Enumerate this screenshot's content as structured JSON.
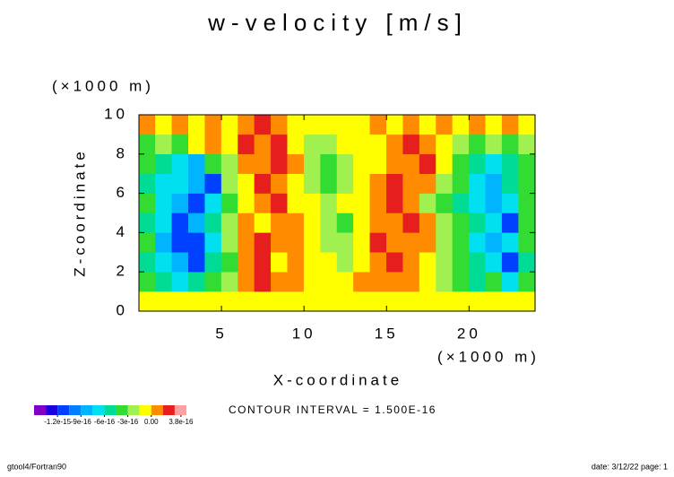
{
  "chart_data": {
    "type": "contour",
    "title": "w-velocity [m/s]",
    "x_label": "X-coordinate",
    "y_label": "Z-coordinate",
    "x_units": "(×1000 m)",
    "y_units": "(×1000 m)",
    "xlim": [
      0,
      24
    ],
    "ylim": [
      0,
      10
    ],
    "xticks": [
      5,
      10,
      15,
      20
    ],
    "yticks": [
      0,
      2,
      4,
      6,
      8,
      10
    ],
    "x": [
      0.5,
      1.5,
      2.5,
      3.5,
      4.5,
      5.5,
      6.5,
      7.5,
      8.5,
      9.5,
      10.5,
      11.5,
      12.5,
      13.5,
      14.5,
      15.5,
      16.5,
      17.5,
      18.5,
      19.5,
      20.5,
      21.5,
      22.5,
      23.5
    ],
    "y": [
      0.5,
      1.5,
      2.5,
      3.5,
      4.5,
      5.5,
      6.5,
      7.5,
      8.5,
      9.5
    ],
    "values": [
      [
        -5e-17,
        -5e-17,
        -5e-17,
        -5e-17,
        -5e-17,
        -5e-17,
        -5e-17,
        -5e-17,
        -5e-17,
        -5e-17,
        -5e-17,
        -5e-17,
        -5e-17,
        -5e-17,
        -5e-17,
        -5e-17,
        -5e-17,
        -5e-17,
        -5e-17,
        -5e-17,
        -5e-17,
        -5e-17,
        -5e-17,
        -5e-17
      ],
      [
        -3.5e-16,
        -5e-16,
        -6.5e-16,
        -5e-16,
        -3.5e-16,
        -2e-16,
        1e-16,
        2.5e-16,
        1e-16,
        1e-16,
        -5e-17,
        -5e-17,
        -5e-17,
        1e-16,
        1e-16,
        1e-16,
        1e-16,
        -5e-17,
        -2e-16,
        -3.5e-16,
        -5e-16,
        -3.5e-16,
        -6.5e-16,
        -3.5e-16
      ],
      [
        -5e-16,
        -6.5e-16,
        -8e-16,
        -1.1e-15,
        -5e-16,
        -3.5e-16,
        1e-16,
        2.5e-16,
        -5e-17,
        1e-16,
        -5e-17,
        -5e-17,
        -2e-16,
        -5e-17,
        1e-16,
        2.5e-16,
        1e-16,
        -5e-17,
        -2e-16,
        -3.5e-16,
        -5e-16,
        -6.5e-16,
        -1.1e-15,
        -5e-16
      ],
      [
        -3.5e-16,
        -8e-16,
        -1.1e-15,
        -1.1e-15,
        -6.5e-16,
        -2e-16,
        1e-16,
        2.5e-16,
        1e-16,
        1e-16,
        -5e-17,
        -2e-16,
        -2e-16,
        -5e-17,
        2.5e-16,
        1e-16,
        1e-16,
        1e-16,
        -2e-16,
        -3.5e-16,
        -6.5e-16,
        -8e-16,
        -6.5e-16,
        -3.5e-16
      ],
      [
        -5e-16,
        -6.5e-16,
        -1.1e-15,
        -8e-16,
        -5e-16,
        -2e-16,
        1e-16,
        -5e-17,
        1e-16,
        1e-16,
        -5e-17,
        -2e-16,
        -3.5e-16,
        -5e-17,
        1e-16,
        1e-16,
        2.5e-16,
        1e-16,
        -2e-16,
        -3.5e-16,
        -5e-16,
        -6.5e-16,
        -1.1e-15,
        -3.5e-16
      ],
      [
        -3.5e-16,
        -6.5e-16,
        -8e-16,
        -1.1e-15,
        -6.5e-16,
        -3.5e-16,
        -5e-17,
        1e-16,
        2.5e-16,
        -5e-17,
        -5e-17,
        -2e-16,
        -5e-17,
        -5e-17,
        1e-16,
        2.5e-16,
        1e-16,
        -2e-16,
        -3.5e-16,
        -5e-16,
        -6.5e-16,
        -8e-16,
        -6.5e-16,
        -3.5e-16
      ],
      [
        -5e-16,
        -6.5e-16,
        -6.5e-16,
        -8e-16,
        -1.1e-15,
        -2e-16,
        -5e-17,
        2.5e-16,
        1e-16,
        -5e-17,
        -2e-16,
        -3.5e-16,
        -2e-16,
        -5e-17,
        1e-16,
        2.5e-16,
        1e-16,
        1e-16,
        -2e-16,
        -3.5e-16,
        -6.5e-16,
        -8e-16,
        -5e-16,
        -3.5e-16
      ],
      [
        -3.5e-16,
        -5e-16,
        -6.5e-16,
        -8e-16,
        -3.5e-16,
        -2e-16,
        1e-16,
        1e-16,
        2.5e-16,
        1e-16,
        -2e-16,
        -3.5e-16,
        -2e-16,
        -5e-17,
        -5e-17,
        1e-16,
        1e-16,
        2.5e-16,
        -5e-17,
        -3.5e-16,
        -5e-16,
        -6.5e-16,
        -5e-16,
        -3.5e-16
      ],
      [
        -3.5e-16,
        -2e-16,
        -3.5e-16,
        -5e-17,
        1e-16,
        -5e-17,
        2.5e-16,
        1e-16,
        2.5e-16,
        -5e-17,
        -2e-16,
        -2e-16,
        -5e-17,
        -5e-17,
        -5e-17,
        1e-16,
        2.5e-16,
        1e-16,
        -5e-17,
        -2e-16,
        -3.5e-16,
        -2e-16,
        -3.5e-16,
        -2e-16
      ],
      [
        1e-16,
        -5e-17,
        1e-16,
        -5e-17,
        1e-16,
        -5e-17,
        1e-16,
        2.5e-16,
        1e-16,
        -5e-17,
        -5e-17,
        -5e-17,
        -5e-17,
        -5e-17,
        1e-16,
        -5e-17,
        1e-16,
        -5e-17,
        1e-16,
        -5e-17,
        1e-16,
        -5e-17,
        1e-16,
        -5e-17
      ]
    ],
    "colorbar": {
      "levels": [
        -1.5e-15,
        -1.35e-15,
        -1.2e-15,
        -1.05e-15,
        -9e-16,
        -7.5e-16,
        -6e-16,
        -4.5e-16,
        -3e-16,
        -1.5e-16,
        0,
        1.5e-16,
        3e-16,
        4.5e-16
      ],
      "colors": [
        "#8000c8",
        "#1a00e0",
        "#0040ff",
        "#0080ff",
        "#00b4ff",
        "#00e0f0",
        "#00dc96",
        "#32dc32",
        "#a0f050",
        "#ffff00",
        "#ff8c00",
        "#e61e1e",
        "#ffa0a0"
      ],
      "ticks": [
        {
          "value": -1.2e-15,
          "label": "-1.2e-15"
        },
        {
          "value": -9e-16,
          "label": "-9e-16"
        },
        {
          "value": -6e-16,
          "label": "-6e-16"
        },
        {
          "value": -3e-16,
          "label": "-3e-16"
        },
        {
          "value": 0,
          "label": "0.00"
        },
        {
          "value": 3.8e-16,
          "label": "3.8e-16"
        }
      ]
    },
    "contour_interval": "CONTOUR INTERVAL = 1.500E-16",
    "footer_left": "gtool4/Fortran90",
    "footer_right": "date: 3/12/22 page: 1"
  }
}
